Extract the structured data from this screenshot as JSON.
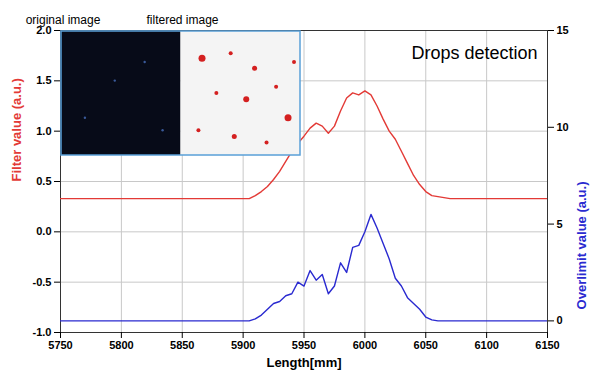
{
  "chart_data": {
    "type": "line",
    "title": "Drops detection",
    "xlabel": "Length[mm]",
    "ylabel": "Filter value (a.u.)",
    "y2label": "Overlimit value (a.u.)",
    "annotations": [
      "original image",
      "filtered image"
    ],
    "x": [
      5750,
      5755,
      5760,
      5765,
      5770,
      5775,
      5780,
      5785,
      5790,
      5795,
      5800,
      5805,
      5810,
      5815,
      5820,
      5825,
      5830,
      5835,
      5840,
      5845,
      5850,
      5855,
      5860,
      5865,
      5870,
      5875,
      5880,
      5885,
      5890,
      5895,
      5900,
      5905,
      5910,
      5915,
      5920,
      5925,
      5930,
      5935,
      5940,
      5945,
      5950,
      5955,
      5960,
      5965,
      5970,
      5975,
      5980,
      5985,
      5990,
      5995,
      6000,
      6005,
      6010,
      6015,
      6020,
      6025,
      6030,
      6035,
      6040,
      6045,
      6050,
      6055,
      6060,
      6065,
      6070,
      6075,
      6080,
      6085,
      6090,
      6095,
      6100,
      6105,
      6110,
      6115,
      6120,
      6125,
      6130,
      6135,
      6140,
      6145,
      6150
    ],
    "series": [
      {
        "color": "#e33a36",
        "values": [
          0.33,
          0.33,
          0.33,
          0.33,
          0.33,
          0.33,
          0.33,
          0.33,
          0.33,
          0.33,
          0.33,
          0.33,
          0.33,
          0.33,
          0.33,
          0.33,
          0.33,
          0.33,
          0.33,
          0.33,
          0.33,
          0.33,
          0.33,
          0.33,
          0.33,
          0.33,
          0.33,
          0.33,
          0.33,
          0.33,
          0.33,
          0.33,
          0.36,
          0.4,
          0.45,
          0.52,
          0.6,
          0.7,
          0.8,
          0.88,
          0.95,
          1.03,
          1.08,
          1.05,
          0.98,
          1.05,
          1.2,
          1.33,
          1.38,
          1.36,
          1.4,
          1.36,
          1.25,
          1.12,
          1.0,
          0.92,
          0.8,
          0.68,
          0.56,
          0.47,
          0.4,
          0.36,
          0.35,
          0.34,
          0.33,
          0.33,
          0.33,
          0.33,
          0.33,
          0.33,
          0.33,
          0.33,
          0.33,
          0.33,
          0.33,
          0.33,
          0.33,
          0.33,
          0.33,
          0.33,
          0.33
        ]
      },
      {
        "color": "#2a2ad0",
        "axis": "y2",
        "values": [
          0,
          0,
          0,
          0,
          0,
          0,
          0,
          0,
          0,
          0,
          0,
          0,
          0,
          0,
          0,
          0,
          0,
          0,
          0,
          0,
          0,
          0,
          0,
          0,
          0,
          0,
          0,
          0,
          0,
          0,
          0,
          0,
          0.1,
          0.3,
          0.6,
          0.9,
          1.0,
          1.3,
          1.4,
          2.0,
          1.8,
          2.6,
          2.1,
          2.4,
          1.4,
          1.8,
          3.0,
          2.5,
          3.8,
          3.9,
          4.6,
          5.5,
          4.8,
          4.0,
          3.2,
          2.2,
          1.8,
          1.2,
          0.9,
          0.6,
          0.2,
          0.05,
          0,
          0,
          0,
          0,
          0,
          0,
          0,
          0,
          0,
          0,
          0,
          0,
          0,
          0,
          0,
          0,
          0,
          0,
          0
        ]
      }
    ],
    "xlim": [
      5750,
      6150
    ],
    "xticks": [
      5750,
      5800,
      5850,
      5900,
      5950,
      6000,
      6050,
      6100,
      6150
    ],
    "ylim": [
      -1,
      2
    ],
    "yticks": [
      {
        "value": -1,
        "label": "-1.0"
      },
      -0.5,
      {
        "value": 0,
        "label": "0.0"
      },
      0.5,
      {
        "value": 1,
        "label": "1.0"
      },
      1.5,
      {
        "value": 2,
        "label": "2.0"
      }
    ],
    "y2lim": [
      -0.6,
      15
    ],
    "y2ticks": [
      0,
      5,
      10,
      15
    ],
    "grid": true
  }
}
